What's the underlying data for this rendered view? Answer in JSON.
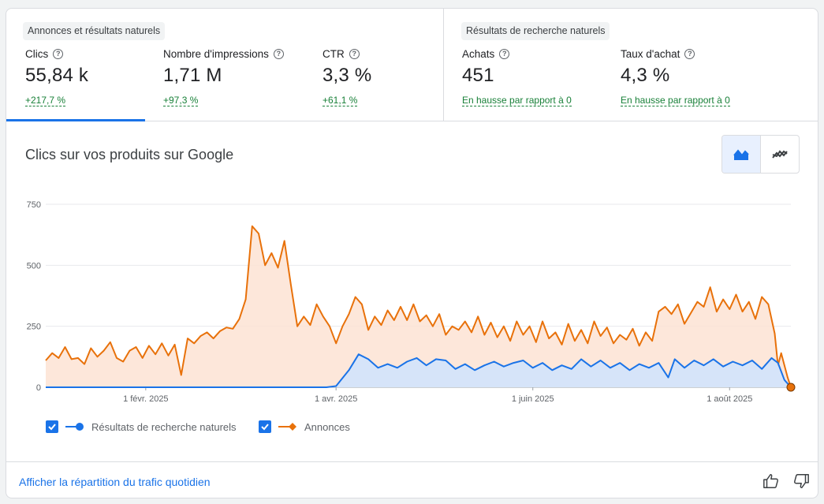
{
  "groups": {
    "ads_and_organic": "Annonces et résultats naturels",
    "organic": "Résultats de recherche naturels"
  },
  "metrics": [
    {
      "label": "Clics",
      "value": "55,84 k",
      "change": "+217,7 %"
    },
    {
      "label": "Nombre d'impressions",
      "value": "1,71 M",
      "change": "+97,3 %"
    },
    {
      "label": "CTR",
      "value": "3,3 %",
      "change": "+61,1 %"
    },
    {
      "label": "Achats",
      "value": "451",
      "change": "En hausse par rapport à 0"
    },
    {
      "label": "Taux d'achat",
      "value": "4,3 %",
      "change": "En hausse par rapport à 0"
    }
  ],
  "chart_title": "Clics sur vos produits sur Google",
  "toggle": {
    "active_icon": "area-chart-icon",
    "inactive_icon": "line-chart-icon"
  },
  "footer": {
    "link": "Afficher la répartition du trafic quotidien"
  },
  "colors": {
    "organic": "#1a73e8",
    "ads": "#e8710a",
    "organic_fill": "#d2e3fc",
    "ads_fill": "#fde3d3"
  },
  "chart_data": {
    "type": "area",
    "title": "",
    "xlabel": "",
    "ylabel": "",
    "ylim": [
      0,
      750
    ],
    "yticks": [
      0,
      250,
      500,
      750
    ],
    "x_range": [
      "2025-01-01",
      "2025-08-20"
    ],
    "xticks": [
      {
        "date": "2025-02-01",
        "label": "1 févr. 2025"
      },
      {
        "date": "2025-04-01",
        "label": "1 avr. 2025"
      },
      {
        "date": "2025-06-01",
        "label": "1 juin 2025"
      },
      {
        "date": "2025-08-01",
        "label": "1 août 2025"
      }
    ],
    "legend_position": "bottom-left",
    "series": [
      {
        "name": "Résultats de recherche naturels",
        "color": "#1a73e8",
        "marker": "circle",
        "points": [
          [
            "2025-01-01",
            0
          ],
          [
            "2025-03-29",
            0
          ],
          [
            "2025-04-01",
            5
          ],
          [
            "2025-04-05",
            70
          ],
          [
            "2025-04-08",
            135
          ],
          [
            "2025-04-11",
            115
          ],
          [
            "2025-04-14",
            80
          ],
          [
            "2025-04-17",
            95
          ],
          [
            "2025-04-20",
            80
          ],
          [
            "2025-04-23",
            105
          ],
          [
            "2025-04-26",
            120
          ],
          [
            "2025-04-29",
            90
          ],
          [
            "2025-05-02",
            115
          ],
          [
            "2025-05-05",
            110
          ],
          [
            "2025-05-08",
            75
          ],
          [
            "2025-05-11",
            95
          ],
          [
            "2025-05-14",
            70
          ],
          [
            "2025-05-17",
            90
          ],
          [
            "2025-05-20",
            105
          ],
          [
            "2025-05-23",
            85
          ],
          [
            "2025-05-26",
            100
          ],
          [
            "2025-05-29",
            110
          ],
          [
            "2025-06-01",
            80
          ],
          [
            "2025-06-04",
            100
          ],
          [
            "2025-06-07",
            70
          ],
          [
            "2025-06-10",
            90
          ],
          [
            "2025-06-13",
            75
          ],
          [
            "2025-06-16",
            115
          ],
          [
            "2025-06-19",
            85
          ],
          [
            "2025-06-22",
            110
          ],
          [
            "2025-06-25",
            80
          ],
          [
            "2025-06-28",
            100
          ],
          [
            "2025-07-01",
            70
          ],
          [
            "2025-07-04",
            95
          ],
          [
            "2025-07-07",
            80
          ],
          [
            "2025-07-10",
            100
          ],
          [
            "2025-07-13",
            40
          ],
          [
            "2025-07-15",
            115
          ],
          [
            "2025-07-18",
            80
          ],
          [
            "2025-07-21",
            110
          ],
          [
            "2025-07-24",
            90
          ],
          [
            "2025-07-27",
            115
          ],
          [
            "2025-07-30",
            85
          ],
          [
            "2025-08-02",
            105
          ],
          [
            "2025-08-05",
            90
          ],
          [
            "2025-08-08",
            110
          ],
          [
            "2025-08-11",
            75
          ],
          [
            "2025-08-14",
            120
          ],
          [
            "2025-08-16",
            100
          ],
          [
            "2025-08-18",
            30
          ],
          [
            "2025-08-20",
            0
          ]
        ]
      },
      {
        "name": "Annonces",
        "color": "#e8710a",
        "marker": "diamond",
        "points": [
          [
            "2025-01-01",
            110
          ],
          [
            "2025-01-03",
            140
          ],
          [
            "2025-01-05",
            120
          ],
          [
            "2025-01-07",
            165
          ],
          [
            "2025-01-09",
            115
          ],
          [
            "2025-01-11",
            120
          ],
          [
            "2025-01-13",
            95
          ],
          [
            "2025-01-15",
            160
          ],
          [
            "2025-01-17",
            125
          ],
          [
            "2025-01-19",
            150
          ],
          [
            "2025-01-21",
            185
          ],
          [
            "2025-01-23",
            120
          ],
          [
            "2025-01-25",
            105
          ],
          [
            "2025-01-27",
            150
          ],
          [
            "2025-01-29",
            165
          ],
          [
            "2025-01-31",
            120
          ],
          [
            "2025-02-02",
            170
          ],
          [
            "2025-02-04",
            135
          ],
          [
            "2025-02-06",
            180
          ],
          [
            "2025-02-08",
            130
          ],
          [
            "2025-02-10",
            175
          ],
          [
            "2025-02-12",
            50
          ],
          [
            "2025-02-14",
            200
          ],
          [
            "2025-02-16",
            180
          ],
          [
            "2025-02-18",
            210
          ],
          [
            "2025-02-20",
            225
          ],
          [
            "2025-02-22",
            200
          ],
          [
            "2025-02-24",
            230
          ],
          [
            "2025-02-26",
            245
          ],
          [
            "2025-02-28",
            240
          ],
          [
            "2025-03-02",
            280
          ],
          [
            "2025-03-04",
            360
          ],
          [
            "2025-03-06",
            660
          ],
          [
            "2025-03-08",
            630
          ],
          [
            "2025-03-10",
            500
          ],
          [
            "2025-03-12",
            550
          ],
          [
            "2025-03-14",
            490
          ],
          [
            "2025-03-16",
            600
          ],
          [
            "2025-03-18",
            420
          ],
          [
            "2025-03-20",
            250
          ],
          [
            "2025-03-22",
            290
          ],
          [
            "2025-03-24",
            255
          ],
          [
            "2025-03-26",
            340
          ],
          [
            "2025-03-28",
            290
          ],
          [
            "2025-03-30",
            250
          ],
          [
            "2025-04-01",
            180
          ],
          [
            "2025-04-03",
            250
          ],
          [
            "2025-04-05",
            300
          ],
          [
            "2025-04-07",
            370
          ],
          [
            "2025-04-09",
            340
          ],
          [
            "2025-04-11",
            235
          ],
          [
            "2025-04-13",
            290
          ],
          [
            "2025-04-15",
            255
          ],
          [
            "2025-04-17",
            315
          ],
          [
            "2025-04-19",
            275
          ],
          [
            "2025-04-21",
            330
          ],
          [
            "2025-04-23",
            275
          ],
          [
            "2025-04-25",
            340
          ],
          [
            "2025-04-27",
            270
          ],
          [
            "2025-04-29",
            295
          ],
          [
            "2025-05-01",
            250
          ],
          [
            "2025-05-03",
            300
          ],
          [
            "2025-05-05",
            215
          ],
          [
            "2025-05-07",
            250
          ],
          [
            "2025-05-09",
            235
          ],
          [
            "2025-05-11",
            270
          ],
          [
            "2025-05-13",
            225
          ],
          [
            "2025-05-15",
            290
          ],
          [
            "2025-05-17",
            215
          ],
          [
            "2025-05-19",
            265
          ],
          [
            "2025-05-21",
            205
          ],
          [
            "2025-05-23",
            250
          ],
          [
            "2025-05-25",
            190
          ],
          [
            "2025-05-27",
            270
          ],
          [
            "2025-05-29",
            215
          ],
          [
            "2025-05-31",
            250
          ],
          [
            "2025-06-02",
            185
          ],
          [
            "2025-06-04",
            270
          ],
          [
            "2025-06-06",
            200
          ],
          [
            "2025-06-08",
            225
          ],
          [
            "2025-06-10",
            175
          ],
          [
            "2025-06-12",
            260
          ],
          [
            "2025-06-14",
            190
          ],
          [
            "2025-06-16",
            235
          ],
          [
            "2025-06-18",
            180
          ],
          [
            "2025-06-20",
            270
          ],
          [
            "2025-06-22",
            210
          ],
          [
            "2025-06-24",
            245
          ],
          [
            "2025-06-26",
            180
          ],
          [
            "2025-06-28",
            215
          ],
          [
            "2025-06-30",
            195
          ],
          [
            "2025-07-02",
            240
          ],
          [
            "2025-07-04",
            170
          ],
          [
            "2025-07-06",
            225
          ],
          [
            "2025-07-08",
            190
          ],
          [
            "2025-07-10",
            310
          ],
          [
            "2025-07-12",
            330
          ],
          [
            "2025-07-14",
            300
          ],
          [
            "2025-07-16",
            340
          ],
          [
            "2025-07-18",
            260
          ],
          [
            "2025-07-20",
            305
          ],
          [
            "2025-07-22",
            350
          ],
          [
            "2025-07-24",
            330
          ],
          [
            "2025-07-26",
            410
          ],
          [
            "2025-07-28",
            310
          ],
          [
            "2025-07-30",
            360
          ],
          [
            "2025-08-01",
            320
          ],
          [
            "2025-08-03",
            380
          ],
          [
            "2025-08-05",
            310
          ],
          [
            "2025-08-07",
            350
          ],
          [
            "2025-08-09",
            280
          ],
          [
            "2025-08-11",
            370
          ],
          [
            "2025-08-13",
            340
          ],
          [
            "2025-08-15",
            220
          ],
          [
            "2025-08-16",
            90
          ],
          [
            "2025-08-17",
            140
          ],
          [
            "2025-08-19",
            40
          ],
          [
            "2025-08-20",
            0
          ]
        ]
      }
    ]
  }
}
